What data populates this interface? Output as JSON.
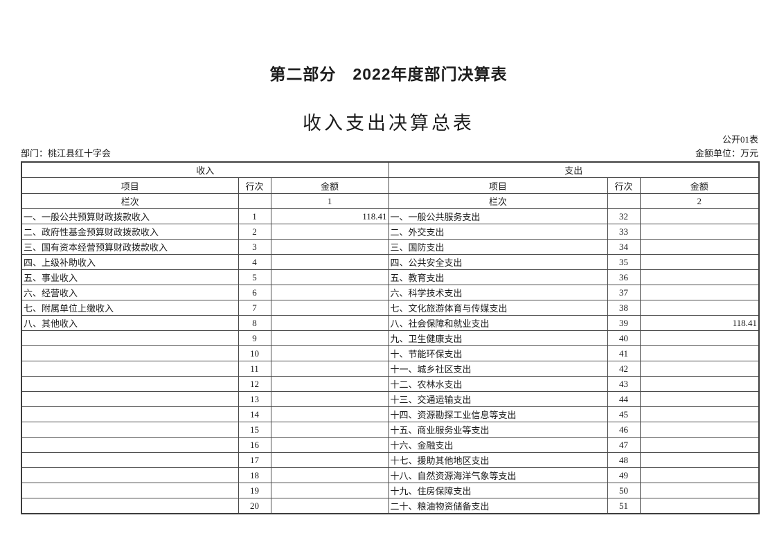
{
  "page": {
    "title": "第二部分　2022年度部门决算表",
    "subtitle": "收入支出决算总表",
    "table_code": "公开01表",
    "department": "部门：桃江县红十字会",
    "unit": "金额单位：万元"
  },
  "table": {
    "income_header": "收入",
    "expense_header": "支出",
    "col_item": "项目",
    "col_line": "行次",
    "col_amount": "金额",
    "col_index_label": "栏次",
    "income_col_number": "1",
    "expense_col_number": "2",
    "income_rows": [
      {
        "item": "一、一般公共预算财政拨款收入",
        "line": "1",
        "amount": "118.41"
      },
      {
        "item": "二、政府性基金预算财政拨款收入",
        "line": "2",
        "amount": ""
      },
      {
        "item": "三、国有资本经营预算财政拨款收入",
        "line": "3",
        "amount": ""
      },
      {
        "item": "四、上级补助收入",
        "line": "4",
        "amount": ""
      },
      {
        "item": "五、事业收入",
        "line": "5",
        "amount": ""
      },
      {
        "item": "六、经营收入",
        "line": "6",
        "amount": ""
      },
      {
        "item": "七、附属单位上缴收入",
        "line": "7",
        "amount": ""
      },
      {
        "item": "八、其他收入",
        "line": "8",
        "amount": ""
      },
      {
        "item": "",
        "line": "9",
        "amount": ""
      },
      {
        "item": "",
        "line": "10",
        "amount": ""
      },
      {
        "item": "",
        "line": "11",
        "amount": ""
      },
      {
        "item": "",
        "line": "12",
        "amount": ""
      },
      {
        "item": "",
        "line": "13",
        "amount": ""
      },
      {
        "item": "",
        "line": "14",
        "amount": ""
      },
      {
        "item": "",
        "line": "15",
        "amount": ""
      },
      {
        "item": "",
        "line": "16",
        "amount": ""
      },
      {
        "item": "",
        "line": "17",
        "amount": ""
      },
      {
        "item": "",
        "line": "18",
        "amount": ""
      },
      {
        "item": "",
        "line": "19",
        "amount": ""
      },
      {
        "item": "",
        "line": "20",
        "amount": ""
      }
    ],
    "expense_rows": [
      {
        "item": "一、一般公共服务支出",
        "line": "32",
        "amount": ""
      },
      {
        "item": "二、外交支出",
        "line": "33",
        "amount": ""
      },
      {
        "item": "三、国防支出",
        "line": "34",
        "amount": ""
      },
      {
        "item": "四、公共安全支出",
        "line": "35",
        "amount": ""
      },
      {
        "item": "五、教育支出",
        "line": "36",
        "amount": ""
      },
      {
        "item": "六、科学技术支出",
        "line": "37",
        "amount": ""
      },
      {
        "item": "七、文化旅游体育与传媒支出",
        "line": "38",
        "amount": ""
      },
      {
        "item": "八、社会保障和就业支出",
        "line": "39",
        "amount": "118.41"
      },
      {
        "item": "九、卫生健康支出",
        "line": "40",
        "amount": ""
      },
      {
        "item": "十、节能环保支出",
        "line": "41",
        "amount": ""
      },
      {
        "item": "十一、城乡社区支出",
        "line": "42",
        "amount": ""
      },
      {
        "item": "十二、农林水支出",
        "line": "43",
        "amount": ""
      },
      {
        "item": "十三、交通运输支出",
        "line": "44",
        "amount": ""
      },
      {
        "item": "十四、资源勘探工业信息等支出",
        "line": "45",
        "amount": ""
      },
      {
        "item": "十五、商业服务业等支出",
        "line": "46",
        "amount": ""
      },
      {
        "item": "十六、金融支出",
        "line": "47",
        "amount": ""
      },
      {
        "item": "十七、援助其他地区支出",
        "line": "48",
        "amount": ""
      },
      {
        "item": "十八、自然资源海洋气象等支出",
        "line": "49",
        "amount": ""
      },
      {
        "item": "十九、住房保障支出",
        "line": "50",
        "amount": ""
      },
      {
        "item": "二十、粮油物资储备支出",
        "line": "51",
        "amount": ""
      }
    ]
  }
}
